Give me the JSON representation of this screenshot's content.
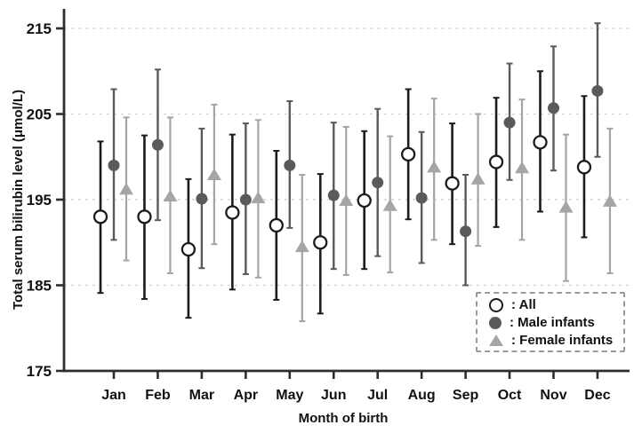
{
  "chart_data": {
    "type": "scatter",
    "title": "",
    "xlabel": "Month of birth",
    "ylabel": "Total serum bilirubin level (μmol/L)",
    "x_categories": [
      "Jan",
      "Feb",
      "Mar",
      "Apr",
      "May",
      "Jun",
      "Jul",
      "Aug",
      "Sep",
      "Oct",
      "Nov",
      "Dec"
    ],
    "yticks": [
      175,
      185,
      195,
      205,
      215
    ],
    "ylim": [
      175,
      217.3
    ],
    "grid": {
      "style": "horizontal-dashed",
      "at": [
        185,
        195,
        205,
        215
      ]
    },
    "error_bars": "mean with upper/lower range whiskers",
    "legend": {
      "position": "bottom-right",
      "border": "dashed",
      "entries": [
        {
          "symbol": "open-circle",
          "label": ": All"
        },
        {
          "symbol": "filled-circle",
          "label": ": Male infants"
        },
        {
          "symbol": "filled-triangle",
          "label": ": Female infants"
        }
      ]
    },
    "series": [
      {
        "name": "All",
        "marker": "open-circle",
        "color": "#1c1c1c",
        "means": [
          193.0,
          193.0,
          189.2,
          193.5,
          192.0,
          190.0,
          194.9,
          200.3,
          196.9,
          199.4,
          201.7,
          198.8
        ],
        "lower": [
          184.1,
          183.4,
          181.2,
          184.5,
          183.3,
          181.7,
          186.9,
          192.7,
          189.8,
          191.8,
          193.6,
          190.6
        ],
        "upper": [
          201.8,
          202.5,
          197.4,
          202.6,
          200.7,
          198.0,
          203.0,
          207.9,
          203.9,
          206.9,
          210.0,
          207.1
        ]
      },
      {
        "name": "Male infants",
        "marker": "filled-circle",
        "color": "#5a5a5a",
        "means": [
          199.0,
          201.4,
          195.1,
          195.0,
          199.0,
          195.5,
          197.0,
          195.2,
          191.3,
          204.0,
          205.7,
          207.7
        ],
        "lower": [
          190.3,
          192.6,
          187.0,
          186.3,
          191.7,
          186.9,
          188.4,
          187.6,
          185.0,
          197.3,
          198.4,
          200.0
        ],
        "upper": [
          207.9,
          210.2,
          203.3,
          203.9,
          206.5,
          204.0,
          205.6,
          202.9,
          197.9,
          210.9,
          212.9,
          215.6
        ]
      },
      {
        "name": "Female infants",
        "marker": "filled-triangle",
        "color": "#a5a5a5",
        "means": [
          196.2,
          195.4,
          197.9,
          195.2,
          189.5,
          194.9,
          194.3,
          198.8,
          197.4,
          198.7,
          194.1,
          194.8
        ],
        "lower": [
          187.9,
          186.4,
          189.8,
          185.9,
          180.8,
          186.2,
          186.5,
          190.3,
          189.6,
          190.3,
          185.5,
          186.4
        ],
        "upper": [
          204.6,
          204.6,
          206.1,
          204.3,
          197.9,
          203.5,
          202.4,
          206.8,
          205.0,
          206.7,
          202.6,
          203.3
        ]
      }
    ]
  },
  "colors": {
    "background": "#ffffff",
    "axis": "#2e2e2e",
    "grid": "#d6d6d6",
    "text": "#111111",
    "legend_border": "#9a9a9a",
    "series_all": "#1c1c1c",
    "series_male": "#5a5a5a",
    "series_female": "#a5a5a5"
  }
}
